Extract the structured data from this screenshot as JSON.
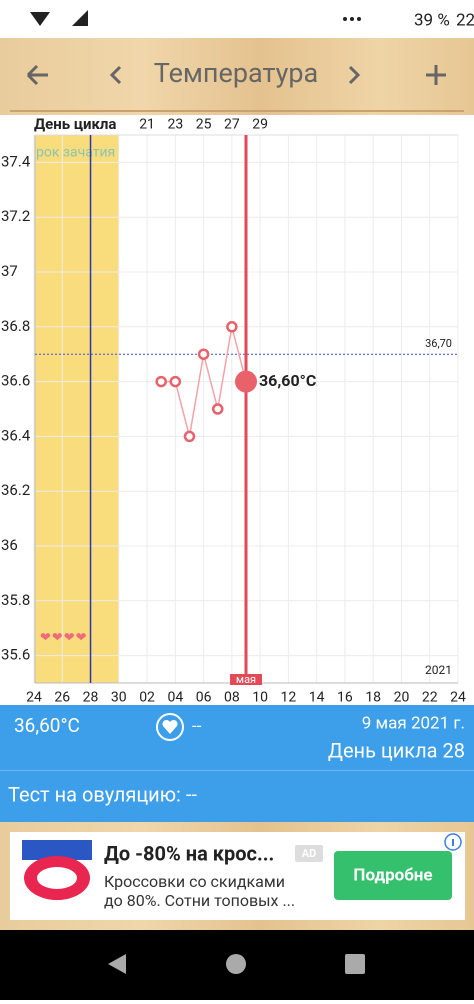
{
  "status_bar": {
    "battery": "39 %",
    "time": "22"
  },
  "header": {
    "title": "Температура"
  },
  "chart_data": {
    "type": "line",
    "cycle_axis_label": "День цикла",
    "categories": [
      "24",
      null,
      "26",
      null,
      "28",
      null,
      "30",
      null,
      "02",
      null,
      "04",
      null,
      "06",
      null,
      "08",
      null,
      "10",
      null,
      "12",
      null,
      "14",
      null,
      "16",
      null,
      "18",
      null,
      "20",
      null,
      "22",
      null,
      "24"
    ],
    "cycle_days": [
      null,
      null,
      null,
      null,
      null,
      null,
      null,
      null,
      21,
      null,
      23,
      null,
      25,
      null,
      27,
      null,
      29,
      null,
      null,
      null,
      null,
      null,
      null,
      null,
      null,
      null,
      null,
      null,
      null,
      null,
      null
    ],
    "values": [
      null,
      null,
      null,
      null,
      null,
      null,
      null,
      null,
      null,
      36.6,
      36.6,
      36.4,
      36.7,
      36.5,
      36.8,
      36.6,
      null,
      null,
      null,
      null,
      null,
      null,
      null,
      null,
      null,
      null,
      null,
      null,
      null,
      null,
      null
    ],
    "color": "#e8616b",
    "ylim": [
      35.5,
      37.5
    ],
    "yticks": [
      35.6,
      35.8,
      36,
      36.2,
      36.4,
      36.6,
      36.8,
      37,
      37.2,
      37.4
    ],
    "grid": true,
    "fertile_window": {
      "label": "рок зачатия",
      "from": 0,
      "to": 6,
      "hearts": "❤❤❤❤"
    },
    "ovulation_index": 4,
    "cover_line": {
      "value": 36.7,
      "label": "36,70"
    },
    "selected": {
      "index": 15,
      "label": "36,60°C",
      "month": "мая"
    },
    "year": "2021"
  },
  "info_panel": {
    "temperature": "36,60°C",
    "heart_value": "--",
    "date": "9 мая 2021 г.",
    "cycle_day": "День цикла 28",
    "ovulation_test": "Тест на овуляцию: --"
  },
  "ad": {
    "title": "До -80% на крос...",
    "badge": "AD",
    "lines": [
      "Кроссовки со скидками",
      "до 80%. Сотни топовых ..."
    ],
    "button": "Подробне"
  }
}
